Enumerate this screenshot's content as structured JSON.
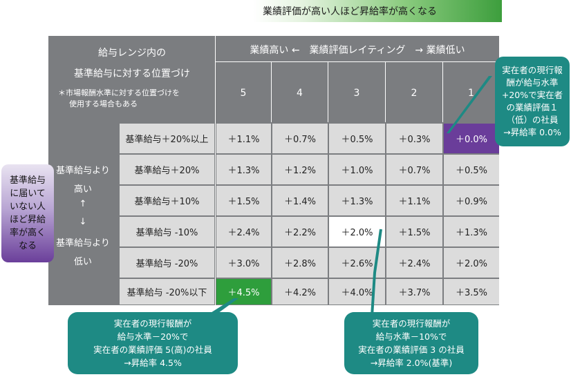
{
  "banner": "業績評価が高い人ほど昇給率が高くなる",
  "header_left": {
    "line1": "給与レンジ内の",
    "line2": "基準給与に対する位置づけ",
    "note_line1": "＊市場報酬水準に対する位置づけを",
    "note_line2": "使用する場合もある"
  },
  "rating_header": "業績高い ←　業績評価レイティング　→ 業績低い",
  "ratings": [
    "5",
    "4",
    "3",
    "2",
    "1"
  ],
  "row_group": {
    "line1": "基準給与より",
    "line2": "高い",
    "up_arrow": "↑",
    "down_arrow": "↓",
    "line3": "基準給与より",
    "line4": "低い"
  },
  "rows": [
    {
      "label": "基準給与＋20%以上",
      "values": [
        "＋1.1%",
        "＋0.7%",
        "＋0.5%",
        "＋0.3%",
        "＋0.0%"
      ]
    },
    {
      "label": "基準給与＋20%",
      "values": [
        "＋1.3%",
        "＋1.2%",
        "＋1.0%",
        "＋0.7%",
        "＋0.5%"
      ]
    },
    {
      "label": "基準給与＋10%",
      "values": [
        "＋1.5%",
        "＋1.4%",
        "＋1.3%",
        "＋1.1%",
        "＋0.9%"
      ]
    },
    {
      "label": "基準給与 -10%",
      "values": [
        "＋2.4%",
        "＋2.2%",
        "＋2.0%",
        "＋1.5%",
        "＋1.3%"
      ]
    },
    {
      "label": "基準給与 -20%",
      "values": [
        "＋3.0%",
        "＋2.8%",
        "＋2.6%",
        "＋2.4%",
        "＋2.0%"
      ]
    },
    {
      "label": "基準給与 -20%以下",
      "values": [
        "＋4.5%",
        "＋4.2%",
        "＋4.0%",
        "＋3.7%",
        "＋3.5%"
      ]
    }
  ],
  "left_callout": [
    "基準給与",
    "に届いて",
    "いない人",
    "ほど昇給",
    "率が高く",
    "なる"
  ],
  "right_callout": [
    "実在者の現行報",
    "酬が給与水準",
    "+20%で実在者",
    "の業績評価１",
    "（低）の社員",
    "→昇給率 0.0%"
  ],
  "bottom_left_callout": [
    "実在者の現行報酬が",
    "給与水準－20%で",
    "実在者の業績評価 5(高)の社員",
    "→昇給率 4.5%"
  ],
  "bottom_right_callout": [
    "実在者の現行報酬が",
    "給与水準－10%で",
    "実在者の業績評価 3 の社員",
    "→昇給率 2.0%(基準)"
  ],
  "colors": {
    "matrix_bg": "#7b7d80",
    "cell_bg": "#dcdcdc",
    "highlight_purple": "#6a3d9a",
    "highlight_green": "#2e9e3c",
    "highlight_white": "#ffffff",
    "callout_teal": "#1e8a84",
    "callout_purple_top": "#e9e3f1",
    "callout_purple_bottom": "#6b3f9a"
  }
}
